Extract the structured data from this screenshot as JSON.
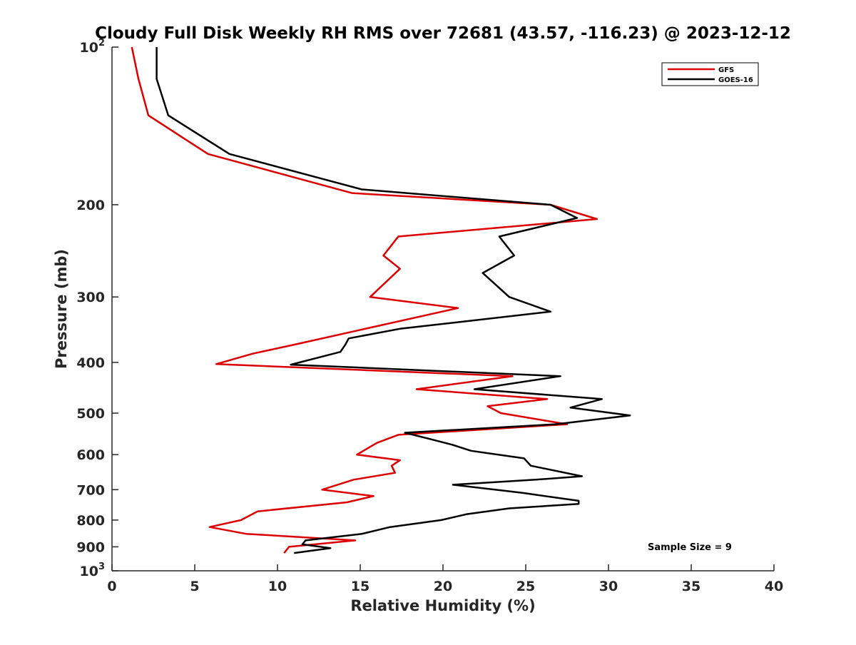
{
  "chart_data": {
    "type": "line",
    "title": "Cloudy Full Disk Weekly RH RMS over 72681 (43.57, -116.23) @ 2023-12-12",
    "xlabel": "Relative Humidity (%)",
    "ylabel": "Pressure (mb)",
    "xlim": [
      0,
      40
    ],
    "ylim": [
      100,
      1000
    ],
    "y_scale": "log",
    "y_reversed": true,
    "x_ticks": [
      0,
      5,
      10,
      15,
      20,
      25,
      30,
      35,
      40
    ],
    "x_tick_labels": [
      "0",
      "5",
      "10",
      "15",
      "20",
      "25",
      "30",
      "35",
      "40"
    ],
    "y_ticks": [
      100,
      200,
      300,
      400,
      500,
      600,
      700,
      800,
      900,
      1000
    ],
    "y_tick_labels": [
      {
        "base": "10",
        "exp": "2"
      },
      {
        "base": "200",
        "exp": ""
      },
      {
        "base": "300",
        "exp": ""
      },
      {
        "base": "400",
        "exp": ""
      },
      {
        "base": "500",
        "exp": ""
      },
      {
        "base": "600",
        "exp": ""
      },
      {
        "base": "700",
        "exp": ""
      },
      {
        "base": "800",
        "exp": ""
      },
      {
        "base": "900",
        "exp": ""
      },
      {
        "base": "10",
        "exp": "3"
      }
    ],
    "grid": false,
    "legend_position": "top-right",
    "series": [
      {
        "name": "GFS",
        "color": "#dd0000",
        "points": [
          [
            1.2,
            100
          ],
          [
            1.6,
            115
          ],
          [
            2.2,
            135
          ],
          [
            5.8,
            160
          ],
          [
            14.5,
            190
          ],
          [
            26.5,
            200
          ],
          [
            29.3,
            213
          ],
          [
            17.3,
            230
          ],
          [
            16.4,
            250
          ],
          [
            17.4,
            265
          ],
          [
            15.6,
            300
          ],
          [
            20.9,
            315
          ],
          [
            11.0,
            370
          ],
          [
            8.5,
            385
          ],
          [
            6.3,
            403
          ],
          [
            24.2,
            425
          ],
          [
            18.4,
            450
          ],
          [
            26.3,
            470
          ],
          [
            22.7,
            485
          ],
          [
            23.5,
            500
          ],
          [
            27.5,
            525
          ],
          [
            17.3,
            550
          ],
          [
            16.0,
            570
          ],
          [
            14.8,
            600
          ],
          [
            17.4,
            615
          ],
          [
            16.9,
            630
          ],
          [
            17.1,
            650
          ],
          [
            14.6,
            670
          ],
          [
            12.7,
            700
          ],
          [
            15.8,
            720
          ],
          [
            14.2,
            740
          ],
          [
            8.8,
            770
          ],
          [
            7.8,
            800
          ],
          [
            5.9,
            825
          ],
          [
            8.1,
            850
          ],
          [
            14.7,
            875
          ],
          [
            10.7,
            900
          ],
          [
            10.4,
            925
          ]
        ]
      },
      {
        "name": "GOES-16",
        "color": "#000000",
        "points": [
          [
            2.7,
            100
          ],
          [
            2.7,
            115
          ],
          [
            3.4,
            135
          ],
          [
            7.1,
            160
          ],
          [
            15.1,
            187
          ],
          [
            26.5,
            200
          ],
          [
            28.1,
            212
          ],
          [
            23.4,
            230
          ],
          [
            24.3,
            250
          ],
          [
            22.4,
            270
          ],
          [
            24.0,
            300
          ],
          [
            26.5,
            320
          ],
          [
            17.4,
            345
          ],
          [
            14.3,
            360
          ],
          [
            14.1,
            370
          ],
          [
            13.8,
            382
          ],
          [
            10.8,
            404
          ],
          [
            27.1,
            425
          ],
          [
            21.9,
            450
          ],
          [
            29.6,
            470
          ],
          [
            27.7,
            488
          ],
          [
            31.3,
            505
          ],
          [
            26.8,
            525
          ],
          [
            17.7,
            545
          ],
          [
            19.2,
            560
          ],
          [
            20.6,
            575
          ],
          [
            21.7,
            590
          ],
          [
            24.9,
            610
          ],
          [
            25.3,
            630
          ],
          [
            28.4,
            660
          ],
          [
            25.6,
            670
          ],
          [
            20.6,
            685
          ],
          [
            24.8,
            710
          ],
          [
            28.2,
            735
          ],
          [
            28.2,
            745
          ],
          [
            24.0,
            760
          ],
          [
            21.4,
            780
          ],
          [
            19.9,
            800
          ],
          [
            16.8,
            825
          ],
          [
            15.1,
            850
          ],
          [
            11.7,
            875
          ],
          [
            11.5,
            890
          ],
          [
            13.2,
            905
          ],
          [
            11.0,
            925
          ]
        ]
      }
    ],
    "annotations": [
      {
        "text": "Sample Size = 9",
        "x": 37,
        "y": 900
      }
    ]
  }
}
